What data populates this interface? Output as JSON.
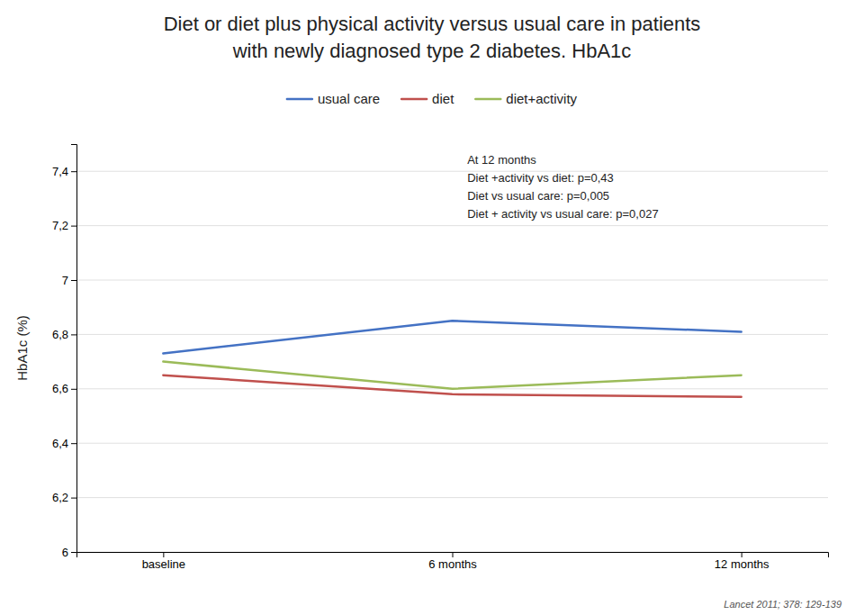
{
  "chart_data": {
    "type": "line",
    "title": "Diet or diet plus physical activity versus usual care in patients",
    "subtitle": "with newly diagnosed type 2 diabetes.  HbA1c",
    "categories": [
      "baseline",
      "6 months",
      "12 months"
    ],
    "y_label": "HbA1c (%)",
    "ylim": [
      6.0,
      7.5
    ],
    "yticks": [
      6,
      {
        "value": 6.2,
        "label": "6,2"
      },
      {
        "value": 6.4,
        "label": "6,4"
      },
      {
        "value": 6.6,
        "label": "6,6"
      },
      {
        "value": 6.8,
        "label": "6,8"
      },
      7,
      {
        "value": 7.2,
        "label": "7,2"
      },
      {
        "value": 7.4,
        "label": "7,4"
      }
    ],
    "grid": true,
    "legend": "top",
    "series": [
      {
        "name": "usual care",
        "color": "#4472C4",
        "values": [
          6.73,
          6.85,
          6.81
        ]
      },
      {
        "name": "diet",
        "color": "#C0504D",
        "values": [
          6.65,
          6.58,
          6.57
        ]
      },
      {
        "name": "diet+activity",
        "color": "#9BBB59",
        "values": [
          6.7,
          6.6,
          6.65
        ]
      }
    ],
    "annotations": [
      "At 12 months",
      "Diet +activity vs  diet: p=0,43",
      "Diet vs usual care: p=0,005",
      "Diet + activity vs usual care: p=0,027"
    ],
    "footnote": "Lancet 2011; 378: 129-139"
  }
}
